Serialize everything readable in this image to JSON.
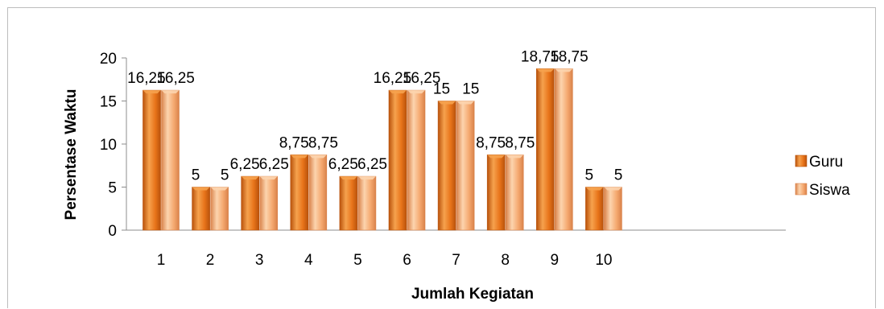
{
  "chart_data": {
    "type": "bar",
    "title": "",
    "xlabel": "Jumlah Kegiatan",
    "ylabel": "Persentase Waktu",
    "categories": [
      "1",
      "2",
      "3",
      "4",
      "5",
      "6",
      "7",
      "8",
      "9",
      "10"
    ],
    "series": [
      {
        "name": "Guru",
        "values": [
          16.25,
          5,
          6.25,
          8.75,
          6.25,
          16.25,
          15,
          8.75,
          18.75,
          5
        ],
        "labels": [
          "16,25",
          "5",
          "6,25",
          "8,75",
          "6,25",
          "16,25",
          "15",
          "8,75",
          "18,75",
          "5"
        ],
        "color": "#E8741A",
        "color_dark": "#B9520B",
        "color_light": "#F6A24E"
      },
      {
        "name": "Siswa",
        "values": [
          16.25,
          5,
          6.25,
          8.75,
          6.25,
          16.25,
          15,
          8.75,
          18.75,
          5
        ],
        "labels": [
          "16,25",
          "5",
          "6,25",
          "8,75",
          "6,25",
          "16,25",
          "15",
          "8,75",
          "18,75",
          "5"
        ],
        "color": "#F5A970",
        "color_dark": "#D9824A",
        "color_light": "#FCD4AE"
      }
    ],
    "ylim": [
      0,
      20
    ],
    "yticks": [
      0,
      5,
      10,
      15,
      20
    ],
    "grid": false,
    "legend_position": "right",
    "data_labels": true
  }
}
